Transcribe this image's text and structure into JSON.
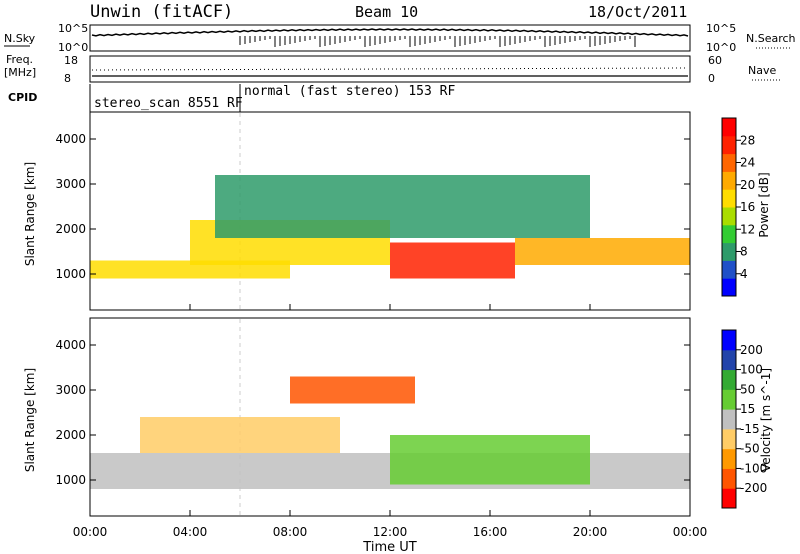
{
  "header": {
    "station": "Unwin (fitACF)",
    "beam": "Beam 10",
    "date": "18/Oct/2011"
  },
  "aux_panels": {
    "nsky": {
      "label": "N.Sky",
      "ticks": [
        "10^5",
        "10^0"
      ]
    },
    "nsearch": {
      "label": "N.Search",
      "ticks": [
        "10^5",
        "10^0"
      ]
    },
    "freq": {
      "label_line1": "Freq.",
      "label_line2": "[MHz]",
      "ticks": [
        "18",
        "8"
      ]
    },
    "nave": {
      "label": "Nave",
      "ticks": [
        "60",
        "0"
      ]
    },
    "cpid": {
      "label": "CPID",
      "segments": [
        {
          "text": "stereo_scan 8551 RF",
          "start_hour": 0,
          "end_hour": 6
        },
        {
          "text": "normal (fast stereo) 153 RF",
          "start_hour": 6,
          "end_hour": 24
        }
      ]
    }
  },
  "chart_data": [
    {
      "type": "heatmap",
      "title": "",
      "ylabel": "Slant Range [km]",
      "xlabel": "",
      "x_ticks": [
        "00:00",
        "04:00",
        "08:00",
        "12:00",
        "16:00",
        "20:00",
        "00:00"
      ],
      "xlim_hours": [
        0,
        24
      ],
      "ylim": [
        200,
        4600
      ],
      "y_ticks": [
        1000,
        2000,
        3000,
        4000
      ],
      "colorbar": {
        "label": "Power [dB]",
        "ticks": [
          "28",
          "24",
          "20",
          "16",
          "12",
          "8",
          "4"
        ],
        "colors": [
          "#0000ff",
          "#2050c8",
          "#2e9b6a",
          "#33cc33",
          "#aadd00",
          "#ffdd00",
          "#ffaa00",
          "#ff6600",
          "#ff2200",
          "#ff0000"
        ]
      },
      "regions": [
        {
          "desc": "main band",
          "x_hours": [
            0,
            8
          ],
          "range_km": [
            900,
            1300
          ],
          "level_db": 16
        },
        {
          "desc": "rising band",
          "x_hours": [
            4,
            12
          ],
          "range_km": [
            1200,
            2200
          ],
          "level_db": 18
        },
        {
          "desc": "intense patch",
          "x_hours": [
            12,
            17
          ],
          "range_km": [
            900,
            1700
          ],
          "level_db": 26
        },
        {
          "desc": "late band",
          "x_hours": [
            17,
            24
          ],
          "range_km": [
            1200,
            1800
          ],
          "level_db": 20
        },
        {
          "desc": "upper scatter",
          "x_hours": [
            5,
            20
          ],
          "range_km": [
            1800,
            3200
          ],
          "level_db": 8
        }
      ]
    },
    {
      "type": "heatmap",
      "title": "",
      "ylabel": "Slant Range [km]",
      "xlabel": "Time UT",
      "x_ticks": [
        "00:00",
        "04:00",
        "08:00",
        "12:00",
        "16:00",
        "20:00",
        "00:00"
      ],
      "xlim_hours": [
        0,
        24
      ],
      "ylim": [
        200,
        4600
      ],
      "y_ticks": [
        1000,
        2000,
        3000,
        4000
      ],
      "colorbar": {
        "label": "Velocity [m s^-1]",
        "ticks": [
          "200",
          "100",
          "50",
          "15",
          "-15",
          "-50",
          "-100",
          "-200"
        ],
        "colors": [
          "#ff0000",
          "#ff5500",
          "#ff9900",
          "#ffcc66",
          "#c0c0c0",
          "#66cc33",
          "#33aa33",
          "#2244aa",
          "#0000ff"
        ]
      },
      "regions": [
        {
          "desc": "ground scatter",
          "x_hours": [
            0,
            24
          ],
          "range_km": [
            800,
            1600
          ],
          "velocity": 0
        },
        {
          "desc": "negative velocity patch",
          "x_hours": [
            2,
            10
          ],
          "range_km": [
            1600,
            2400
          ],
          "velocity": -40
        },
        {
          "desc": "positive velocity patch",
          "x_hours": [
            12,
            20
          ],
          "range_km": [
            900,
            2000
          ],
          "velocity": 60
        },
        {
          "desc": "high negative",
          "x_hours": [
            8,
            13
          ],
          "range_km": [
            2700,
            3300
          ],
          "velocity": -150
        }
      ]
    }
  ]
}
